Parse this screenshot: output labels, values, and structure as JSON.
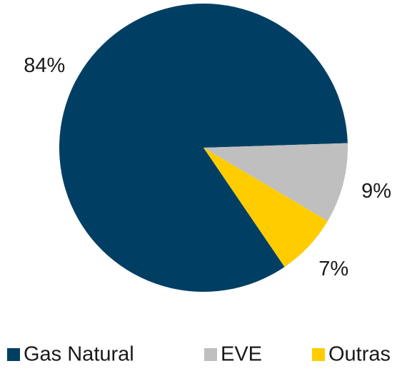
{
  "chart_data": {
    "type": "pie",
    "categories": [
      "Gas Natural",
      "EVE",
      "Outras"
    ],
    "values": [
      84,
      9,
      7
    ],
    "value_labels": [
      "84%",
      "9%",
      "7%"
    ],
    "colors": [
      "#003f63",
      "#bfbfbf",
      "#ffcc00"
    ],
    "legend": "bottom"
  }
}
